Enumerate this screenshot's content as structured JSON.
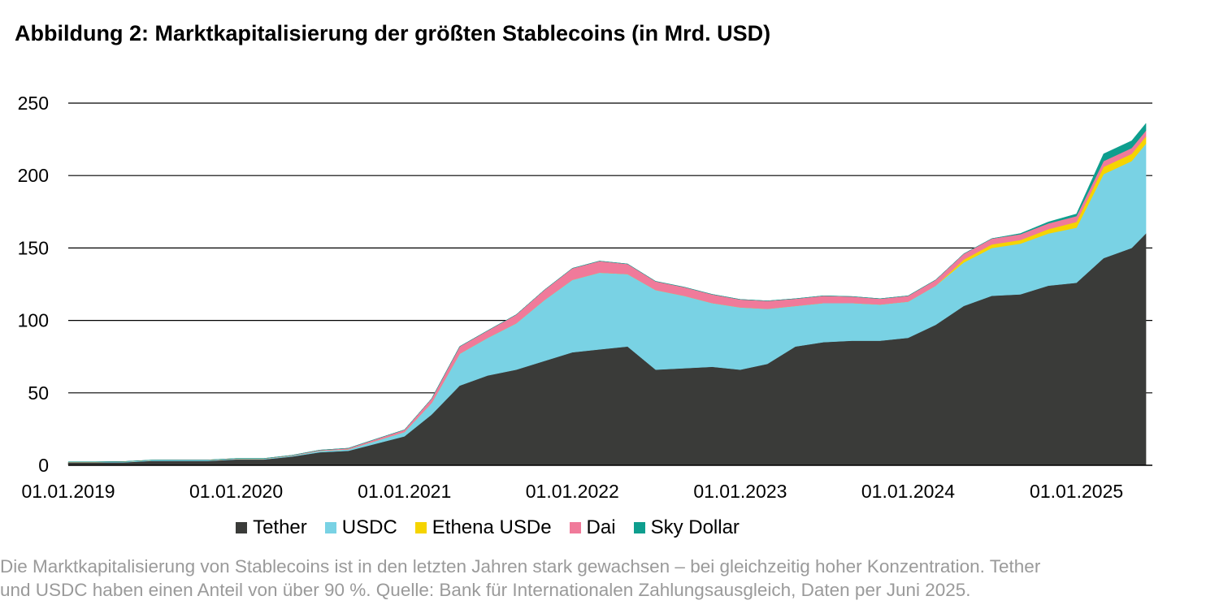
{
  "title": "Abbildung 2: Marktkapitalisierung der größten Stablecoins (in Mrd. USD)",
  "caption": {
    "line1": "Die Marktkapitalisierung von Stablecoins ist in den letzten Jahren stark gewachsen – bei gleichzeitig hoher Konzentration. Tether",
    "line2": "und USDC haben einen Anteil von über 90 %. Quelle: Bank für Internationalen Zahlungsausgleich, Daten per Juni 2025."
  },
  "chart_data": {
    "type": "area",
    "stacked": true,
    "xlabel": "",
    "ylabel": "",
    "ylim": [
      0,
      250
    ],
    "yticks": [
      "0",
      "50",
      "100",
      "150",
      "200",
      "250"
    ],
    "xticks": [
      "01.01.2019",
      "01.01.2020",
      "01.01.2021",
      "01.01.2022",
      "01.01.2023",
      "01.01.2024",
      "01.01.2025"
    ],
    "grid": true,
    "legend_position": "bottom",
    "x": [
      "2019-01",
      "2019-03",
      "2019-05",
      "2019-07",
      "2019-09",
      "2019-11",
      "2020-01",
      "2020-03",
      "2020-05",
      "2020-07",
      "2020-09",
      "2020-11",
      "2021-01",
      "2021-03",
      "2021-05",
      "2021-07",
      "2021-09",
      "2021-11",
      "2022-01",
      "2022-03",
      "2022-05",
      "2022-07",
      "2022-09",
      "2022-11",
      "2023-01",
      "2023-03",
      "2023-05",
      "2023-07",
      "2023-09",
      "2023-11",
      "2024-01",
      "2024-03",
      "2024-05",
      "2024-07",
      "2024-09",
      "2024-11",
      "2025-01",
      "2025-03",
      "2025-05",
      "2025-06"
    ],
    "series": [
      {
        "name": "Tether",
        "color": "#3a3b39",
        "values": [
          2,
          2,
          2,
          3,
          3,
          3,
          4,
          4,
          6,
          9,
          10,
          15,
          20,
          35,
          55,
          62,
          66,
          72,
          78,
          80,
          82,
          66,
          67,
          68,
          66,
          70,
          82,
          85,
          86,
          86,
          88,
          97,
          110,
          117,
          118,
          124,
          126,
          143,
          150,
          160
        ]
      },
      {
        "name": "USDC",
        "color": "#79d2e4",
        "values": [
          0.3,
          0.3,
          0.5,
          0.5,
          0.5,
          0.5,
          0.5,
          0.5,
          0.6,
          1,
          1,
          2,
          3,
          8,
          22,
          26,
          32,
          42,
          50,
          53,
          50,
          55,
          50,
          44,
          43,
          38,
          28,
          27,
          26,
          25,
          25,
          27,
          30,
          33,
          35,
          36,
          38,
          58,
          60,
          62
        ]
      },
      {
        "name": "Ethena USDe",
        "color": "#f5d400",
        "values": [
          0,
          0,
          0,
          0,
          0,
          0,
          0,
          0,
          0,
          0,
          0,
          0,
          0,
          0,
          0,
          0,
          0,
          0,
          0,
          0,
          0,
          0,
          0,
          0,
          0,
          0,
          0,
          0,
          0,
          0,
          0,
          0,
          2,
          2.5,
          2.5,
          3,
          4,
          5,
          5,
          5
        ]
      },
      {
        "name": "Dai",
        "color": "#f07a9a",
        "values": [
          0.1,
          0.1,
          0.1,
          0.1,
          0.2,
          0.2,
          0.2,
          0.2,
          0.3,
          0.5,
          0.8,
          1.2,
          1.5,
          3,
          5,
          5,
          6,
          7,
          8,
          8,
          7,
          6,
          6,
          6,
          5.5,
          5.5,
          5,
          5,
          4.5,
          4,
          4,
          4,
          4,
          4,
          4,
          4,
          4,
          4,
          4,
          4
        ]
      },
      {
        "name": "Sky Dollar",
        "color": "#0e9e8e",
        "values": [
          0,
          0,
          0,
          0,
          0,
          0,
          0,
          0,
          0,
          0,
          0,
          0,
          0,
          0,
          0,
          0,
          0,
          0,
          0,
          0,
          0,
          0,
          0,
          0,
          0,
          0,
          0,
          0,
          0,
          0,
          0,
          0,
          0,
          0,
          0.5,
          1,
          1.5,
          5,
          5,
          5
        ]
      }
    ]
  }
}
